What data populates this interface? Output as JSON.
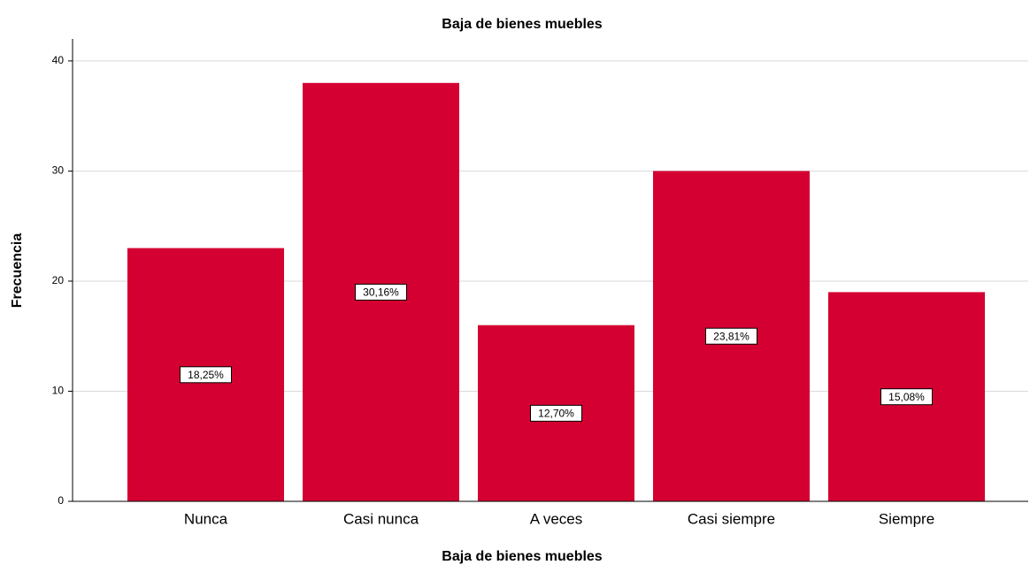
{
  "chart_data": {
    "type": "bar",
    "title": "Baja de bienes muebles",
    "x_label": "Baja de bienes muebles",
    "y_label": "Frecuencia",
    "categories": [
      "Nunca",
      "Casi nunca",
      "A veces",
      "Casi siempre",
      "Siempre"
    ],
    "values": [
      23,
      38,
      16,
      30,
      19
    ],
    "percentages": [
      18.25,
      30.16,
      12.7,
      23.81,
      15.08
    ],
    "value_labels": [
      "18,25%",
      "30,16%",
      "12,70%",
      "23,81%",
      "15,08%"
    ],
    "color": "#d40032",
    "ylim": [
      0,
      42
    ],
    "yticks": [
      0,
      10,
      20,
      30,
      40
    ],
    "grid": true
  }
}
